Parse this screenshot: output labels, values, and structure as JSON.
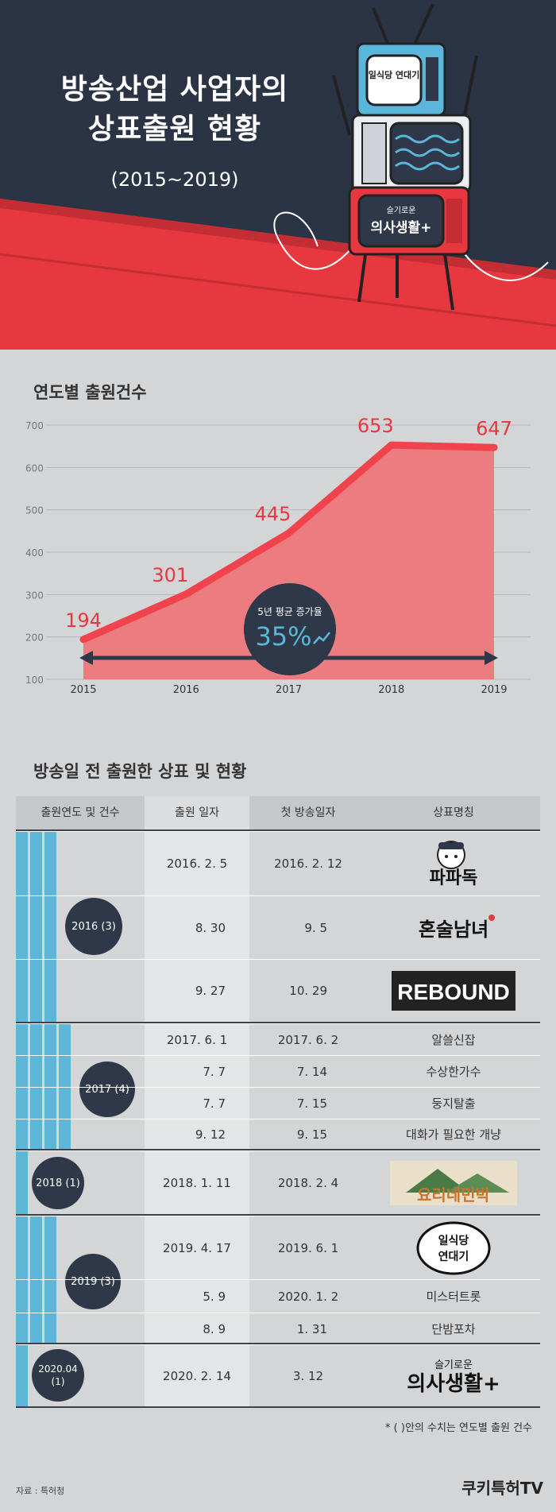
{
  "header": {
    "title_line1": "방송산업 사업자의",
    "title_line2": "상표출원 현황",
    "subtitle": "(2015~2019)"
  },
  "chart_section_title": "연도별 출원건수",
  "chart_data": {
    "type": "area",
    "title": "연도별 출원건수",
    "categories": [
      "2015",
      "2016",
      "2017",
      "2018",
      "2019"
    ],
    "values": [
      194,
      301,
      445,
      653,
      647
    ],
    "ylim": [
      100,
      700
    ],
    "yticks": [
      100,
      200,
      300,
      400,
      500,
      600,
      700
    ],
    "grid": true,
    "annotation": {
      "label": "5년 평균 증가율",
      "value": "35%"
    },
    "colors": {
      "line": "#f0434e",
      "fill": "#f07278",
      "labels": "#e8383f"
    }
  },
  "table_section_title": "방송일 전 출원한 상표 및 현황",
  "table": {
    "headers": [
      "출원연도 및 건수",
      "출원 일자",
      "첫 방송일자",
      "상표명칭"
    ],
    "groups": [
      {
        "label": "2016 (3)",
        "bars": 3,
        "rows": [
          {
            "filed": "2016. 2. 5",
            "aired": "2016. 2. 12",
            "name": "파파독",
            "logo": "papadog"
          },
          {
            "filed": "8. 30",
            "aired": "9. 5",
            "name": "혼술남녀",
            "logo": "honsul"
          },
          {
            "filed": "9. 27",
            "aired": "10. 29",
            "name": "REBOUND",
            "logo": "rebound"
          }
        ]
      },
      {
        "label": "2017 (4)",
        "bars": 4,
        "rows": [
          {
            "filed": "2017. 6. 1",
            "aired": "2017. 6. 2",
            "name": "알쓸신잡"
          },
          {
            "filed": "7. 7",
            "aired": "7. 14",
            "name": "수상한가수"
          },
          {
            "filed": "7. 7",
            "aired": "7. 15",
            "name": "둥지탈출"
          },
          {
            "filed": "9. 12",
            "aired": "9. 15",
            "name": "대화가 필요한 개냥"
          }
        ]
      },
      {
        "label": "2018 (1)",
        "bars": 1,
        "rows": [
          {
            "filed": "2018. 1. 11",
            "aired": "2018. 2. 4",
            "name": "요리네민박",
            "logo": "minbak"
          }
        ]
      },
      {
        "label": "2019 (3)",
        "bars": 3,
        "rows": [
          {
            "filed": "2019. 4. 17",
            "aired": "2019. 6. 1",
            "name": "일식당 연대기",
            "logo": "yeondaegi"
          },
          {
            "filed": "5. 9",
            "aired": "2020. 1. 2",
            "name": "미스터트롯"
          },
          {
            "filed": "8. 9",
            "aired": "1. 31",
            "name": "단밤포차"
          }
        ]
      },
      {
        "label": "2020.04 (1)",
        "bars": 1,
        "rows": [
          {
            "filed": "2020. 2. 14",
            "aired": "3. 12",
            "name": "의사생활",
            "logo": "uisa"
          }
        ]
      }
    ]
  },
  "footnote": "* (   )안의 수치는 연도별 출원 건수",
  "source": "자료 : 특허청",
  "brand": "쿠키특허TV",
  "logos": {
    "tv_top": "일식당 연대기",
    "tv_bottom_small": "슬기로운",
    "tv_bottom_big": "의사생활+",
    "papadog": "파파독",
    "honsul": "혼술남녀",
    "rebound": "REBOUND",
    "minbak": "요리네민박",
    "yeondaegi_1": "일식당",
    "yeondaegi_2": "연대기",
    "uisa_small": "슬기로운",
    "uisa_big": "의사생활+"
  }
}
